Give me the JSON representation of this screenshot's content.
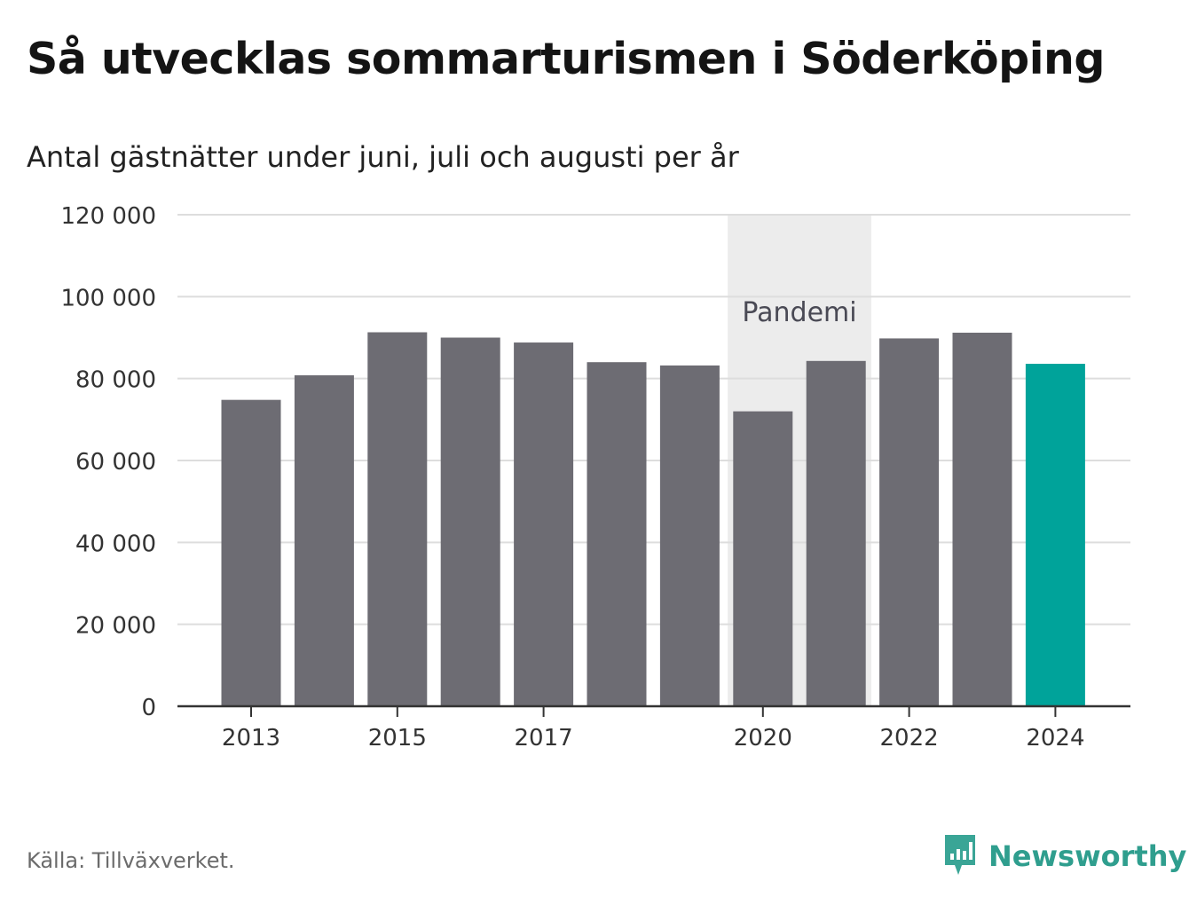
{
  "title": "Så utvecklas sommarturismen i Söderköping",
  "subtitle": "Antal gästnätter under juni, juli och augusti per år",
  "source": "Källa: Tillväxverket.",
  "brand": {
    "name": "Newsworthy",
    "icon": "newsworthy-logo-icon",
    "color": "#2f9e8e"
  },
  "colors": {
    "bar": "#6d6c73",
    "highlight": "#00a39a",
    "shade": "#ececec",
    "grid": "#dddddd",
    "axis": "#333333"
  },
  "chart_data": {
    "type": "bar",
    "categories": [
      "2013",
      "2014",
      "2015",
      "2016",
      "2017",
      "2018",
      "2019",
      "2020",
      "2021",
      "2022",
      "2023",
      "2024"
    ],
    "values": [
      74800,
      80800,
      91300,
      90000,
      88800,
      84000,
      83200,
      72000,
      84300,
      89800,
      91200,
      83600
    ],
    "x_tick_labels": [
      "2013",
      "2015",
      "2017",
      "2020",
      "2022",
      "2024"
    ],
    "y_ticks": [
      0,
      20000,
      40000,
      60000,
      80000,
      100000,
      120000
    ],
    "y_tick_labels": [
      "0",
      "20 000",
      "40 000",
      "60 000",
      "80 000",
      "100 000",
      "120 000"
    ],
    "ylim": [
      0,
      120000
    ],
    "highlight_category": "2024",
    "shaded_region": {
      "from": "2020",
      "to": "2021",
      "label": "Pandemi"
    },
    "grid": true,
    "title": "Så utvecklas sommarturismen i Söderköping",
    "xlabel": "",
    "ylabel": ""
  }
}
